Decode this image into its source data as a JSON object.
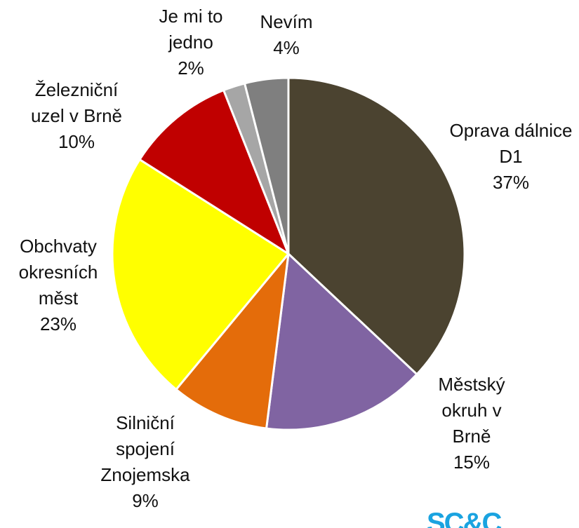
{
  "chart_data": {
    "type": "pie",
    "categories": [
      "Oprava dálnice D1",
      "Městský okruh v Brně",
      "Silniční spojení Znojemska",
      "Obchvaty okresních měst",
      "Železniční uzel v Brně",
      "Je mi to jedno",
      "Nevím"
    ],
    "values": [
      37,
      15,
      9,
      23,
      10,
      2,
      4
    ],
    "value_labels": [
      "37%",
      "15%",
      "9%",
      "23%",
      "10%",
      "2%",
      "4%"
    ],
    "colors": [
      "#4b4330",
      "#8064a2",
      "#e46c0a",
      "#ffff00",
      "#c00000",
      "#a6a6a6",
      "#7f7f7f"
    ]
  },
  "logo": "SC&C"
}
